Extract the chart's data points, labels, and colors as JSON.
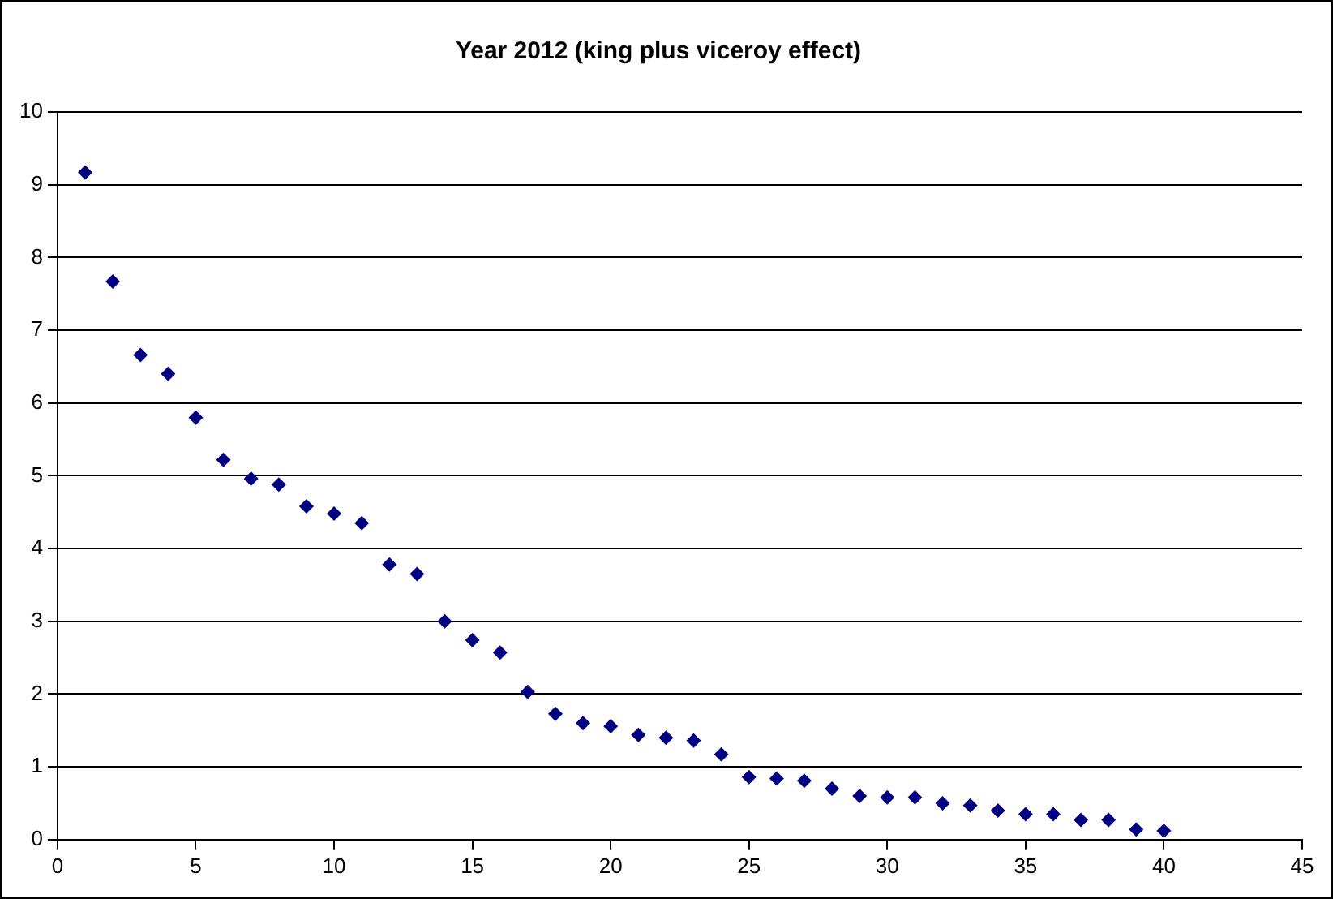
{
  "chart_data": {
    "type": "scatter",
    "title": "Year 2012 (king plus viceroy effect)",
    "x": [
      1,
      2,
      3,
      4,
      5,
      6,
      7,
      8,
      9,
      10,
      11,
      12,
      13,
      14,
      15,
      16,
      17,
      18,
      19,
      20,
      21,
      22,
      23,
      24,
      25,
      26,
      27,
      28,
      29,
      30,
      31,
      32,
      33,
      34,
      35,
      36,
      37,
      38,
      39,
      40
    ],
    "series": [
      {
        "color": "#000080",
        "values": [
          9.17,
          7.67,
          6.66,
          6.4,
          5.8,
          5.22,
          4.96,
          4.88,
          4.58,
          4.48,
          4.35,
          3.78,
          3.65,
          3.0,
          2.74,
          2.57,
          2.03,
          1.73,
          1.6,
          1.56,
          1.44,
          1.4,
          1.36,
          1.17,
          0.86,
          0.84,
          0.81,
          0.7,
          0.6,
          0.58,
          0.58,
          0.5,
          0.47,
          0.4,
          0.35,
          0.35,
          0.27,
          0.27,
          0.14,
          0.12
        ]
      }
    ],
    "xlim": [
      0,
      45
    ],
    "xticks": [
      0,
      5,
      10,
      15,
      20,
      25,
      30,
      35,
      40,
      45
    ],
    "ylim": [
      0,
      10
    ],
    "yticks": [
      0,
      1,
      2,
      3,
      4,
      5,
      6,
      7,
      8,
      9,
      10
    ],
    "grid": "y",
    "legend": false,
    "marker": "diamond"
  }
}
